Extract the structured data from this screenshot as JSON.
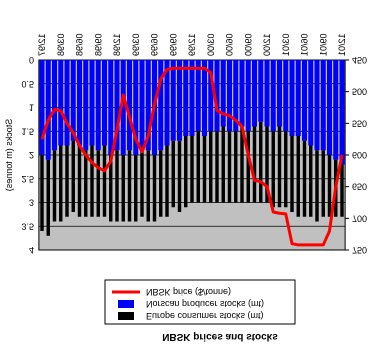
{
  "chart_data": {
    "type": "stacked-bar-line",
    "title": "NBSK prices and stocks",
    "flipped": "vertical",
    "ylabel": "Stocks (m tonnes)",
    "categories": [
      "12/97",
      null,
      null,
      "03/98",
      null,
      null,
      "06/98",
      null,
      null,
      "09/98",
      null,
      null,
      "12/98",
      null,
      null,
      "03/99",
      null,
      null,
      "06/99",
      null,
      null,
      "09/99",
      null,
      null,
      "12/99",
      null,
      null,
      "03/00",
      null,
      null,
      "06/00",
      null,
      null,
      "09/00",
      null,
      null,
      "12/00",
      null,
      null,
      "03/01",
      null,
      null,
      "06/01",
      null,
      null,
      "09/01",
      null,
      null,
      "12/01"
    ],
    "series": [
      {
        "name": "Europe consumer stocks (mt)",
        "color": "#000000",
        "kind": "bar",
        "axis": "y",
        "values": [
          1.6,
          1.6,
          1.5,
          1.6,
          1.5,
          1.5,
          1.5,
          1.4,
          1.5,
          1.4,
          1.5,
          1.4,
          1.5,
          1.4,
          1.5,
          1.4,
          1.4,
          1.5,
          1.4,
          1.4,
          1.5,
          1.4,
          1.5,
          1.5,
          1.4,
          1.5,
          1.4,
          1.5,
          1.5,
          1.6,
          1.5,
          1.5,
          1.6,
          1.5,
          1.6,
          1.7,
          1.6,
          1.6,
          1.7,
          1.6,
          1.6,
          1.7,
          1.6,
          1.5,
          1.5,
          1.4,
          1.3,
          1.2,
          1.1
        ]
      },
      {
        "name": "Norscan producer stocks (mt)",
        "color": "#0000ff",
        "kind": "bar",
        "axis": "y",
        "values": [
          2.0,
          2.1,
          1.9,
          1.8,
          1.8,
          1.7,
          1.8,
          1.9,
          1.8,
          1.9,
          1.8,
          2.0,
          1.9,
          2.0,
          1.9,
          2.0,
          1.9,
          1.9,
          2.0,
          1.9,
          1.8,
          1.7,
          1.7,
          1.6,
          1.6,
          1.5,
          1.6,
          1.5,
          1.5,
          1.4,
          1.5,
          1.5,
          1.4,
          1.5,
          1.4,
          1.3,
          1.4,
          1.5,
          1.4,
          1.5,
          1.6,
          1.6,
          1.7,
          1.8,
          1.9,
          1.9,
          2.0,
          2.1,
          2.2
        ]
      },
      {
        "name": "NBSK price ($/tonne)",
        "color": "#ff0000",
        "kind": "line",
        "axis": "y2",
        "values": [
          575,
          545,
          528,
          530,
          550,
          565,
          585,
          600,
          612,
          620,
          625,
          610,
          560,
          505,
          540,
          575,
          595,
          570,
          520,
          480,
          465,
          463,
          463,
          463,
          463,
          463,
          463,
          470,
          530,
          535,
          538,
          545,
          555,
          600,
          640,
          642,
          650,
          690,
          692,
          693,
          740,
          742,
          742,
          742,
          742,
          742,
          720,
          650,
          600
        ]
      }
    ],
    "stack_order": [
      1,
      0
    ],
    "ylim": [
      0,
      4
    ],
    "yticks": [
      0,
      {
        "value": 0.5,
        "label": "0.5"
      },
      1,
      {
        "value": 1.5,
        "label": "1.5"
      },
      2,
      {
        "value": 2.5,
        "label": "2.5"
      },
      3,
      {
        "value": 3.5,
        "label": "3.5"
      },
      4
    ],
    "y2lim": [
      450,
      750
    ],
    "y2ticks": [
      450,
      500,
      550,
      600,
      650,
      700,
      750
    ],
    "grid": true,
    "plot_background": "#c0c0c0"
  }
}
